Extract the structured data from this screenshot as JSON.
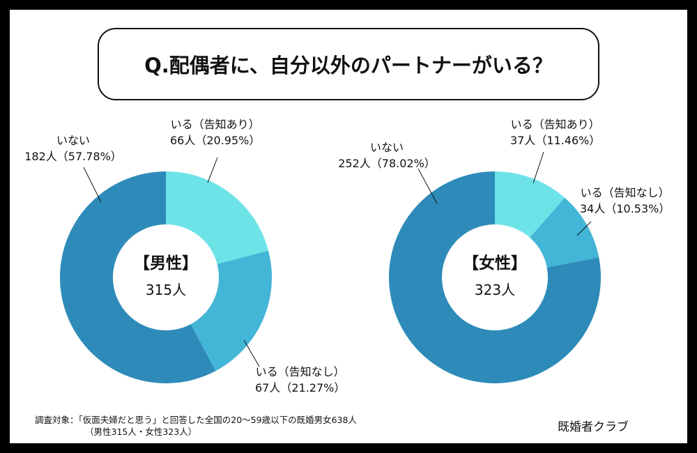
{
  "title": "Q.配偶者に、自分以外のパートナーがいる？",
  "chart_data": [
    {
      "type": "pie",
      "group": "【男性】",
      "total": "315人",
      "slices": [
        {
          "label": "いる（告知あり）",
          "count": 66,
          "count_label": "66人（20.95%）",
          "percent": 20.95,
          "color": "#6de3e8"
        },
        {
          "label": "いる（告知なし）",
          "count": 67,
          "count_label": "67人（21.27%）",
          "percent": 21.27,
          "color": "#43b5d6"
        },
        {
          "label": "いない",
          "count": 182,
          "count_label": "182人（57.78%）",
          "percent": 57.78,
          "color": "#2e8bb9"
        }
      ]
    },
    {
      "type": "pie",
      "group": "【女性】",
      "total": "323人",
      "slices": [
        {
          "label": "いる（告知あり）",
          "count": 37,
          "count_label": "37人（11.46%）",
          "percent": 11.46,
          "color": "#6de3e8"
        },
        {
          "label": "いる（告知なし）",
          "count": 34,
          "count_label": "34人（10.53%）",
          "percent": 10.53,
          "color": "#43b5d6"
        },
        {
          "label": "いない",
          "count": 252,
          "count_label": "252人（78.02%）",
          "percent": 78.02,
          "color": "#2e8bb9"
        }
      ]
    }
  ],
  "footnote": {
    "line1": "調査対象：「仮面夫婦だと思う」と回答した全国の20～59歳以下の既婚男女638人",
    "line2": "（男性315人・女性323人）"
  },
  "brand": "既婚者クラブ"
}
